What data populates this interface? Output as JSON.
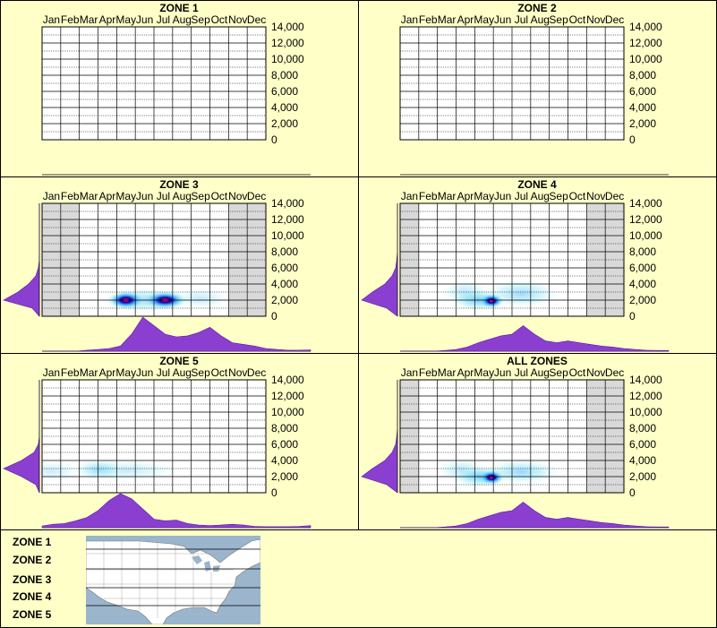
{
  "months": [
    "Jan",
    "Feb",
    "Mar",
    "Apr",
    "May",
    "Jun",
    "Jul",
    "Aug",
    "Sep",
    "Oct",
    "Nov",
    "Dec"
  ],
  "y_ticks": [
    "14,000",
    "12,000",
    "10,000",
    "8,000",
    "6,000",
    "4,000",
    "2,000",
    "0"
  ],
  "colors": {
    "background": "#ffffc8",
    "density": "#8a3fd0",
    "shade": "#d9d9d9",
    "map_water": "#9ab5cc",
    "map_land": "#ffffff"
  },
  "chart_data": [
    {
      "type": "heatmap",
      "title": "ZONE 1",
      "x": [
        "Jan",
        "Feb",
        "Mar",
        "Apr",
        "May",
        "Jun",
        "Jul",
        "Aug",
        "Sep",
        "Oct",
        "Nov",
        "Dec"
      ],
      "ylim": [
        0,
        14000
      ],
      "shaded_months": [],
      "hotspots": [],
      "month_density": [],
      "elevation_density": []
    },
    {
      "type": "heatmap",
      "title": "ZONE 2",
      "x": [
        "Jan",
        "Feb",
        "Mar",
        "Apr",
        "May",
        "Jun",
        "Jul",
        "Aug",
        "Sep",
        "Oct",
        "Nov",
        "Dec"
      ],
      "ylim": [
        0,
        14000
      ],
      "shaded_months": [],
      "hotspots": [],
      "month_density": [],
      "elevation_density": []
    },
    {
      "type": "heatmap",
      "title": "ZONE 3",
      "x": [
        "Jan",
        "Feb",
        "Mar",
        "Apr",
        "May",
        "Jun",
        "Jul",
        "Aug",
        "Sep",
        "Oct",
        "Nov",
        "Dec"
      ],
      "ylim": [
        0,
        14000
      ],
      "shaded_months": [
        "Jan",
        "Feb",
        "Nov",
        "Dec"
      ],
      "hotspots": [
        {
          "month": 5.5,
          "elev": 2000,
          "intensity": 1.0,
          "spread_m": 0.6,
          "spread_e": 500
        },
        {
          "month": 7.6,
          "elev": 2000,
          "intensity": 0.85,
          "spread_m": 0.7,
          "spread_e": 500
        },
        {
          "month": 6.5,
          "elev": 2000,
          "intensity": 0.35,
          "spread_m": 1.5,
          "spread_e": 700
        },
        {
          "month": 9.5,
          "elev": 2200,
          "intensity": 0.12,
          "spread_m": 1.0,
          "spread_e": 600
        }
      ],
      "month_density": [
        0,
        0,
        0,
        0,
        0.03,
        0.05,
        0.08,
        0.15,
        0.5,
        1.0,
        0.75,
        0.5,
        0.42,
        0.45,
        0.55,
        0.7,
        0.45,
        0.25,
        0.2,
        0.15,
        0.08,
        0.05,
        0.03,
        0.03,
        0.04
      ],
      "elevation_density": [
        0,
        0.2,
        1.0,
        0.6,
        0.3,
        0.1,
        0.03,
        0,
        0,
        0,
        0,
        0,
        0,
        0,
        0
      ]
    },
    {
      "type": "heatmap",
      "title": "ZONE 4",
      "x": [
        "Jan",
        "Feb",
        "Mar",
        "Apr",
        "May",
        "Jun",
        "Jul",
        "Aug",
        "Sep",
        "Oct",
        "Nov",
        "Dec"
      ],
      "ylim": [
        0,
        14000
      ],
      "shaded_months": [
        "Jan",
        "Nov",
        "Dec"
      ],
      "hotspots": [
        {
          "month": 5.9,
          "elev": 1900,
          "intensity": 1.0,
          "spread_m": 0.4,
          "spread_e": 400
        },
        {
          "month": 5.2,
          "elev": 2000,
          "intensity": 0.6,
          "spread_m": 0.9,
          "spread_e": 600
        },
        {
          "month": 7.5,
          "elev": 2800,
          "intensity": 0.35,
          "spread_m": 1.3,
          "spread_e": 800
        },
        {
          "month": 4.5,
          "elev": 3000,
          "intensity": 0.2,
          "spread_m": 0.8,
          "spread_e": 700
        }
      ],
      "month_density": [
        0,
        0,
        0,
        0,
        0.02,
        0.05,
        0.12,
        0.25,
        0.35,
        0.45,
        0.5,
        0.75,
        0.5,
        0.3,
        0.25,
        0.3,
        0.25,
        0.2,
        0.15,
        0.12,
        0.08,
        0.05,
        0.03,
        0.02,
        0.02
      ],
      "elevation_density": [
        0,
        0.3,
        1.0,
        0.7,
        0.35,
        0.15,
        0.05,
        0.02,
        0,
        0,
        0,
        0,
        0,
        0,
        0
      ]
    },
    {
      "type": "heatmap",
      "title": "ZONE 5",
      "x": [
        "Jan",
        "Feb",
        "Mar",
        "Apr",
        "May",
        "Jun",
        "Jul",
        "Aug",
        "Sep",
        "Oct",
        "Nov",
        "Dec"
      ],
      "ylim": [
        0,
        14000
      ],
      "shaded_months": [],
      "hotspots": [
        {
          "month": 4.0,
          "elev": 2900,
          "intensity": 0.3,
          "spread_m": 0.8,
          "spread_e": 600
        },
        {
          "month": 5.5,
          "elev": 2800,
          "intensity": 0.12,
          "spread_m": 1.8,
          "spread_e": 600
        },
        {
          "month": 1.5,
          "elev": 2700,
          "intensity": 0.08,
          "spread_m": 1.0,
          "spread_e": 600
        }
      ],
      "month_density": [
        0.05,
        0.1,
        0.12,
        0.2,
        0.3,
        0.5,
        0.8,
        1.0,
        0.85,
        0.55,
        0.25,
        0.2,
        0.22,
        0.12,
        0.08,
        0.06,
        0.08,
        0.1,
        0.08,
        0.04,
        0.03,
        0.03,
        0.03,
        0.04,
        0.06
      ],
      "elevation_density": [
        0,
        0.1,
        0.5,
        1.0,
        0.5,
        0.15,
        0.03,
        0,
        0,
        0,
        0,
        0,
        0,
        0,
        0
      ]
    },
    {
      "type": "heatmap",
      "title": "ALL ZONES",
      "x": [
        "Jan",
        "Feb",
        "Mar",
        "Apr",
        "May",
        "Jun",
        "Jul",
        "Aug",
        "Sep",
        "Oct",
        "Nov",
        "Dec"
      ],
      "ylim": [
        0,
        14000
      ],
      "shaded_months": [
        "Jan",
        "Nov",
        "Dec"
      ],
      "hotspots": [
        {
          "month": 5.9,
          "elev": 1900,
          "intensity": 1.0,
          "spread_m": 0.4,
          "spread_e": 400
        },
        {
          "month": 5.3,
          "elev": 2000,
          "intensity": 0.65,
          "spread_m": 0.9,
          "spread_e": 600
        },
        {
          "month": 7.5,
          "elev": 2600,
          "intensity": 0.4,
          "spread_m": 1.3,
          "spread_e": 700
        },
        {
          "month": 4.3,
          "elev": 2800,
          "intensity": 0.2,
          "spread_m": 0.8,
          "spread_e": 700
        }
      ],
      "month_density": [
        0,
        0,
        0,
        0,
        0.02,
        0.05,
        0.12,
        0.25,
        0.35,
        0.45,
        0.5,
        0.75,
        0.5,
        0.3,
        0.25,
        0.3,
        0.25,
        0.2,
        0.15,
        0.12,
        0.08,
        0.05,
        0.03,
        0.02,
        0.02
      ],
      "elevation_density": [
        0,
        0.3,
        1.0,
        0.7,
        0.35,
        0.15,
        0.05,
        0.02,
        0,
        0,
        0,
        0,
        0,
        0,
        0
      ]
    }
  ],
  "legend": {
    "zones": [
      "ZONE 1",
      "ZONE 2",
      "ZONE 3",
      "ZONE 4",
      "ZONE 5"
    ]
  }
}
